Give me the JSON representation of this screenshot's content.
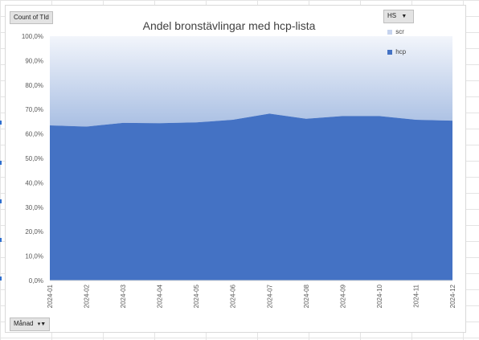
{
  "pivot": {
    "value_button": "Count of TId",
    "legend_field_button": "HS",
    "legend_field_icon": "dropdown-arrow-icon",
    "axis_field_button": "Månad",
    "axis_field_icon": "filter-dropdown-icon"
  },
  "colors": {
    "hcp": "#4472c4",
    "scr_top": "#f2f5fb",
    "scr_bottom": "#a9bfe3",
    "axis": "#d9d9d9",
    "text": "#595959"
  },
  "chart_data": {
    "type": "area",
    "stacked": "percent",
    "title": "Andel bronstävlingar med hcp-lista",
    "x": [
      "2024-01",
      "2024-02",
      "2024-03",
      "2024-04",
      "2024-05",
      "2024-06",
      "2024-07",
      "2024-08",
      "2024-09",
      "2024-10",
      "2024-11",
      "2024-12"
    ],
    "series": [
      {
        "name": "scr",
        "values": [
          36.5,
          37.0,
          35.5,
          35.6,
          35.3,
          34.2,
          31.7,
          33.8,
          32.7,
          32.7,
          34.2,
          34.6
        ]
      },
      {
        "name": "hcp",
        "values": [
          63.5,
          63.0,
          64.5,
          64.4,
          64.7,
          65.8,
          68.3,
          66.2,
          67.3,
          67.3,
          65.8,
          65.4
        ]
      }
    ],
    "yticks": [
      "0,0%",
      "10,0%",
      "20,0%",
      "30,0%",
      "40,0%",
      "50,0%",
      "60,0%",
      "70,0%",
      "80,0%",
      "90,0%",
      "100,0%"
    ],
    "ylim": [
      0,
      100
    ],
    "grid": false,
    "legend": "right"
  }
}
